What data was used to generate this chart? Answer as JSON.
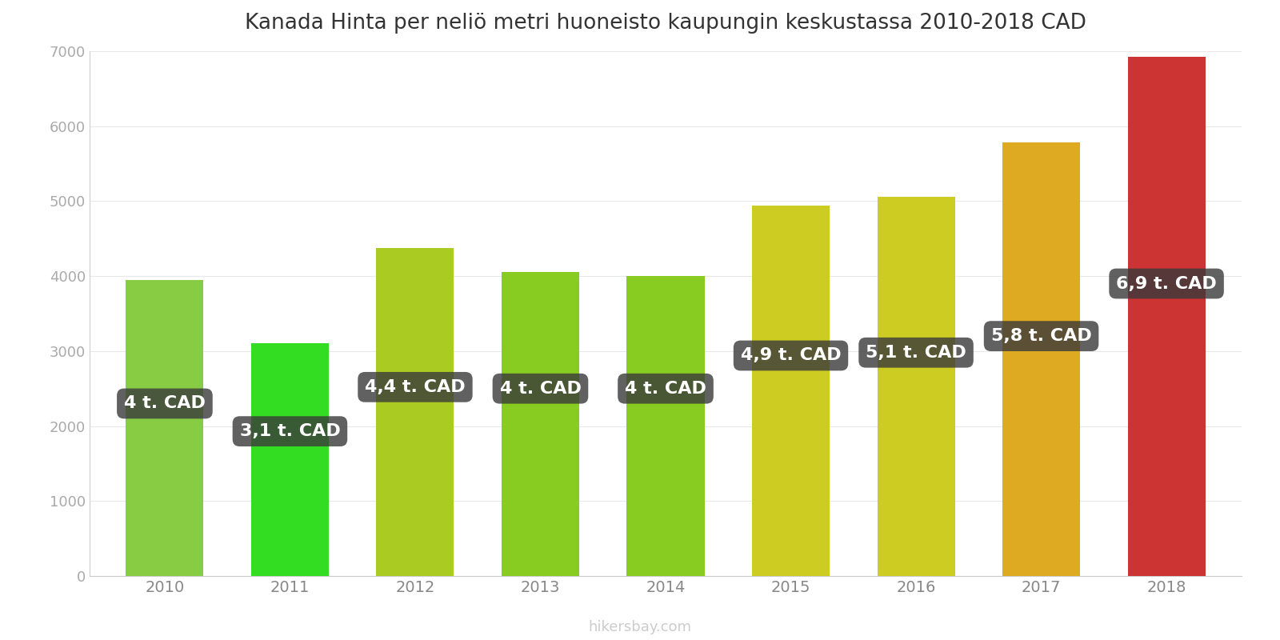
{
  "title": "Kanada Hinta per neliö metri huoneisto kaupungin keskustassa 2010-2018 CAD",
  "years": [
    2010,
    2011,
    2012,
    2013,
    2014,
    2015,
    2016,
    2017,
    2018
  ],
  "values": [
    3950,
    3100,
    4370,
    4060,
    4000,
    4940,
    5060,
    5780,
    6920
  ],
  "labels": [
    "4 t. CAD",
    "3,1 t. CAD",
    "4,4 t. CAD",
    "4 t. CAD",
    "4 t. CAD",
    "4,9 t. CAD",
    "5,1 t. CAD",
    "5,8 t. CAD",
    "6,9 t. CAD"
  ],
  "bar_colors": [
    "#88cc44",
    "#33dd22",
    "#aacc22",
    "#88cc22",
    "#88cc22",
    "#cccc22",
    "#cccc22",
    "#ddaa22",
    "#cc3333"
  ],
  "ylim": [
    0,
    7000
  ],
  "yticks": [
    0,
    1000,
    2000,
    3000,
    4000,
    5000,
    6000,
    7000
  ],
  "label_y_positions": [
    2300,
    1930,
    2520,
    2500,
    2500,
    2940,
    2980,
    3200,
    3900
  ],
  "watermark": "hikersbay.com",
  "background_color": "#ffffff",
  "title_fontsize": 19,
  "label_fontsize": 16
}
